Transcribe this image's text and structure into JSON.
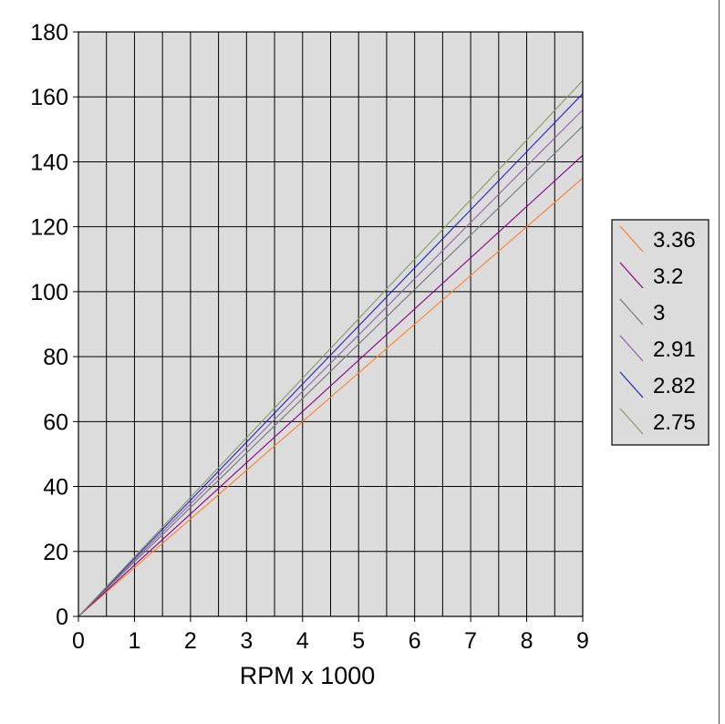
{
  "chart_data": {
    "type": "line",
    "title": "",
    "xlabel": "RPM x 1000",
    "ylabel": "",
    "xlim": [
      0,
      9
    ],
    "ylim": [
      0,
      180
    ],
    "x_ticks": [
      "0",
      "1",
      "2",
      "3",
      "4",
      "5",
      "6",
      "7",
      "8",
      "9"
    ],
    "y_ticks": [
      "0",
      "20",
      "40",
      "60",
      "80",
      "100",
      "120",
      "140",
      "160",
      "180"
    ],
    "grid": true,
    "legend_position": "right",
    "plot_background": "#dcdcdc",
    "x": [
      0,
      9
    ],
    "series": [
      {
        "name": "3.36",
        "color": "#ff7f27",
        "values": [
          0,
          135
        ]
      },
      {
        "name": "3.2",
        "color": "#880088",
        "values": [
          0,
          142
        ]
      },
      {
        "name": "3",
        "color": "#777777",
        "values": [
          0,
          151
        ]
      },
      {
        "name": "2.91",
        "color": "#8866aa",
        "values": [
          0,
          156
        ]
      },
      {
        "name": "2.82",
        "color": "#2222bb",
        "values": [
          0,
          161
        ]
      },
      {
        "name": "2.75",
        "color": "#889966",
        "values": [
          0,
          165
        ]
      }
    ]
  }
}
